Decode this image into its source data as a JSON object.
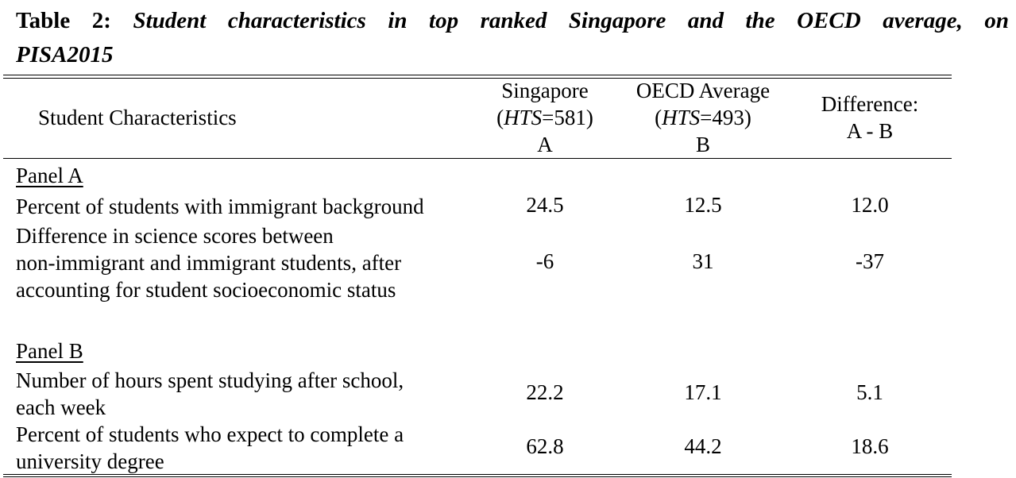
{
  "caption": {
    "label": "Table 2:",
    "title_line1": "Student characteristics in top ranked Singapore and the OECD average, on",
    "title_line2": "PISA2015"
  },
  "header": {
    "row_label": "Student Characteristics",
    "col_a": {
      "name": "Singapore",
      "hts_label": "HTS",
      "hts_value": "=581)",
      "open": "(",
      "letter": "A"
    },
    "col_b": {
      "name": "OECD Average",
      "hts_label": "HTS",
      "hts_value": "=493)",
      "open": "(",
      "letter": "B"
    },
    "col_diff": {
      "line1": "Difference:",
      "line2": "A - B"
    }
  },
  "panels": [
    {
      "title": "Panel A",
      "rows": [
        {
          "label_lines": [
            "Percent of students with immigrant background"
          ],
          "a": "24.5",
          "b": "12.5",
          "diff": "12.0"
        },
        {
          "label_lines": [
            "Difference in science scores between",
            "non-immigrant and immigrant students, after",
            "accounting for student socioeconomic status"
          ],
          "a": "-6",
          "b": "31",
          "diff": "-37"
        }
      ]
    },
    {
      "title": "Panel B",
      "rows": [
        {
          "label_lines": [
            "Number of hours spent studying after school,",
            "each week"
          ],
          "a": "22.2",
          "b": "17.1",
          "diff": "5.1"
        },
        {
          "label_lines": [
            "Percent of students who expect to complete a",
            "university degree"
          ],
          "a": "62.8",
          "b": "44.2",
          "diff": "18.6"
        }
      ]
    }
  ]
}
